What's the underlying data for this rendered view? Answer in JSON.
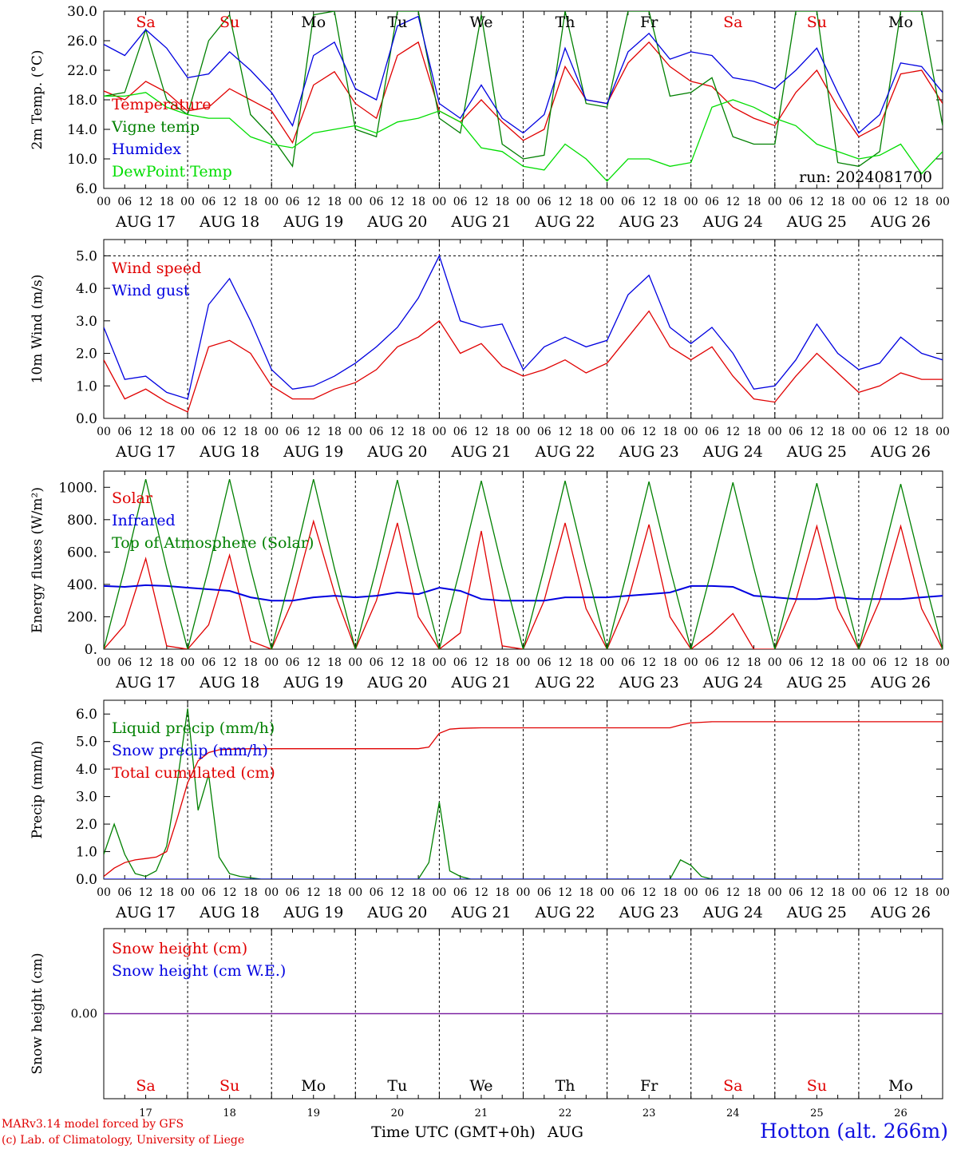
{
  "chart_data": [
    {
      "type": "line",
      "panel": "temperature",
      "ylabel": "2m Temp. (°C)",
      "ylim": [
        6,
        30
      ],
      "yticks": [
        "6.0",
        "10.0",
        "14.0",
        "18.0",
        "22.0",
        "26.0",
        "30.0"
      ],
      "annotation": "run: 2024081700",
      "x_hours": [
        0,
        6,
        12,
        18,
        24,
        30,
        36,
        42,
        48,
        54,
        60,
        66,
        72,
        78,
        84,
        90,
        96,
        102,
        108,
        114,
        120,
        126,
        132,
        138,
        144,
        150,
        156,
        162,
        168,
        174,
        180,
        186,
        192,
        198,
        204,
        210,
        216,
        222,
        228,
        234,
        240
      ],
      "series": [
        {
          "name": "Temperature",
          "color": "#e00000",
          "values": [
            19.2,
            18.0,
            20.5,
            19.0,
            16.5,
            17.0,
            19.5,
            18.0,
            16.5,
            12.2,
            20.0,
            21.8,
            17.5,
            15.5,
            24.0,
            25.8,
            16.5,
            15.0,
            18.0,
            15.0,
            12.5,
            14.0,
            22.5,
            18.0,
            17.5,
            23.0,
            25.8,
            22.5,
            20.5,
            19.8,
            17.0,
            15.5,
            14.5,
            19.0,
            22.0,
            17.0,
            13.0,
            14.5,
            21.5,
            22.0,
            17.5
          ]
        },
        {
          "name": "Vigne temp",
          "color": "#008000",
          "values": [
            18.5,
            19.0,
            27.5,
            18.0,
            16.0,
            26.0,
            29.5,
            16.0,
            13.0,
            9.0,
            29.5,
            30.0,
            14.0,
            13.0,
            30.0,
            30.0,
            15.5,
            13.5,
            29.5,
            12.0,
            10.0,
            10.5,
            30.0,
            17.5,
            17.0,
            30.0,
            30.0,
            18.5,
            19.0,
            21.0,
            13.0,
            12.0,
            12.0,
            30.0,
            30.0,
            9.5,
            9.0,
            11.0,
            30.0,
            30.0,
            14.5
          ]
        },
        {
          "name": "Humidex",
          "color": "#0000e0",
          "values": [
            25.5,
            24.0,
            27.5,
            25.0,
            21.0,
            21.5,
            24.5,
            22.0,
            19.0,
            14.5,
            24.0,
            25.8,
            19.5,
            18.0,
            28.0,
            29.3,
            17.5,
            15.5,
            20.0,
            15.5,
            13.5,
            16.0,
            25.0,
            18.0,
            17.5,
            24.5,
            27.0,
            23.5,
            24.5,
            24.0,
            21.0,
            20.5,
            19.5,
            22.0,
            25.0,
            19.0,
            13.5,
            16.0,
            23.0,
            22.5,
            19.0
          ]
        },
        {
          "name": "DewPoint Temp",
          "color": "#00dd00",
          "values": [
            18.5,
            18.5,
            19.0,
            17.0,
            16.0,
            15.5,
            15.5,
            13.0,
            12.0,
            11.5,
            13.5,
            14.0,
            14.5,
            13.5,
            15.0,
            15.5,
            16.5,
            15.0,
            11.5,
            11.0,
            9.0,
            8.5,
            12.0,
            10.0,
            7.0,
            10.0,
            10.0,
            9.0,
            9.5,
            17.0,
            18.0,
            17.0,
            15.5,
            14.5,
            12.0,
            11.0,
            10.0,
            10.5,
            12.0,
            8.0,
            11.0
          ]
        }
      ]
    },
    {
      "type": "line",
      "panel": "wind",
      "ylabel": "10m Wind (m/s)",
      "ylim": [
        0,
        5.5
      ],
      "yticks": [
        "0.0",
        "1.0",
        "2.0",
        "3.0",
        "4.0",
        "5.0"
      ],
      "x_hours": [
        0,
        6,
        12,
        18,
        24,
        30,
        36,
        42,
        48,
        54,
        60,
        66,
        72,
        78,
        84,
        90,
        96,
        102,
        108,
        114,
        120,
        126,
        132,
        138,
        144,
        150,
        156,
        162,
        168,
        174,
        180,
        186,
        192,
        198,
        204,
        210,
        216,
        222,
        228,
        234,
        240
      ],
      "series": [
        {
          "name": "Wind speed",
          "color": "#e00000",
          "values": [
            1.8,
            0.6,
            0.9,
            0.5,
            0.2,
            2.2,
            2.4,
            2.0,
            1.0,
            0.6,
            0.6,
            0.9,
            1.1,
            1.5,
            2.2,
            2.5,
            3.0,
            2.0,
            2.3,
            1.6,
            1.3,
            1.5,
            1.8,
            1.4,
            1.7,
            2.5,
            3.3,
            2.2,
            1.8,
            2.2,
            1.3,
            0.6,
            0.5,
            1.3,
            2.0,
            1.4,
            0.8,
            1.0,
            1.4,
            1.2,
            1.2
          ]
        },
        {
          "name": "Wind gust",
          "color": "#0000e0",
          "values": [
            2.8,
            1.2,
            1.3,
            0.8,
            0.6,
            3.5,
            4.3,
            3.0,
            1.5,
            0.9,
            1.0,
            1.3,
            1.7,
            2.2,
            2.8,
            3.7,
            5.0,
            3.0,
            2.8,
            2.9,
            1.5,
            2.2,
            2.5,
            2.2,
            2.4,
            3.8,
            4.4,
            2.8,
            2.3,
            2.8,
            2.0,
            0.9,
            1.0,
            1.8,
            2.9,
            2.0,
            1.5,
            1.7,
            2.5,
            2.0,
            1.8
          ]
        }
      ]
    },
    {
      "type": "line",
      "panel": "energy",
      "ylabel": "Energy fluxes (W/m²)",
      "ylim": [
        0,
        1100
      ],
      "yticks": [
        "0.",
        "200.",
        "400.",
        "600.",
        "800.",
        "1000."
      ],
      "x_hours": [
        0,
        6,
        12,
        18,
        24,
        30,
        36,
        42,
        48,
        54,
        60,
        66,
        72,
        78,
        84,
        90,
        96,
        102,
        108,
        114,
        120,
        126,
        132,
        138,
        144,
        150,
        156,
        162,
        168,
        174,
        180,
        186,
        192,
        198,
        204,
        210,
        216,
        222,
        228,
        234,
        240
      ],
      "series": [
        {
          "name": "Solar",
          "color": "#e00000",
          "values": [
            0,
            150,
            560,
            20,
            0,
            150,
            580,
            50,
            0,
            300,
            790,
            350,
            0,
            300,
            780,
            200,
            0,
            100,
            730,
            20,
            0,
            300,
            780,
            250,
            0,
            300,
            770,
            200,
            0,
            100,
            220,
            0,
            0,
            300,
            760,
            250,
            0,
            300,
            760,
            250,
            0
          ]
        },
        {
          "name": "Infrared",
          "color": "#0000e0",
          "values": [
            390,
            385,
            395,
            390,
            380,
            370,
            360,
            320,
            300,
            300,
            320,
            330,
            320,
            330,
            350,
            340,
            380,
            360,
            310,
            300,
            300,
            300,
            320,
            320,
            320,
            330,
            340,
            350,
            390,
            390,
            385,
            330,
            320,
            310,
            310,
            320,
            310,
            310,
            310,
            320,
            330
          ]
        },
        {
          "name": "Top of Atmosphere (Solar)",
          "color": "#008000",
          "values": [
            0,
            500,
            1050,
            500,
            0,
            500,
            1050,
            500,
            0,
            500,
            1050,
            500,
            0,
            500,
            1045,
            500,
            0,
            500,
            1040,
            500,
            0,
            500,
            1040,
            500,
            0,
            500,
            1035,
            500,
            0,
            500,
            1030,
            500,
            0,
            500,
            1025,
            500,
            0,
            500,
            1020,
            500,
            0
          ]
        }
      ]
    },
    {
      "type": "line",
      "panel": "precip",
      "ylabel": "Precip (mm/h)",
      "ylim": [
        0,
        6.5
      ],
      "yticks": [
        "0.0",
        "1.0",
        "2.0",
        "3.0",
        "4.0",
        "5.0",
        "6.0"
      ],
      "x_hours": [
        0,
        3,
        6,
        9,
        12,
        15,
        18,
        21,
        24,
        27,
        30,
        33,
        36,
        39,
        42,
        45,
        48,
        60,
        72,
        84,
        90,
        93,
        96,
        99,
        102,
        105,
        108,
        120,
        144,
        162,
        165,
        168,
        171,
        174,
        180,
        192,
        216,
        240
      ],
      "series": [
        {
          "name": "Liquid precip (mm/h)",
          "color": "#008000",
          "values": [
            0.9,
            2.0,
            0.9,
            0.2,
            0.1,
            0.3,
            1.2,
            3.5,
            6.2,
            2.5,
            3.8,
            0.8,
            0.2,
            0.1,
            0.05,
            0,
            0,
            0,
            0,
            0,
            0,
            0.6,
            2.8,
            0.3,
            0.1,
            0,
            0,
            0,
            0,
            0,
            0.7,
            0.5,
            0.1,
            0,
            0,
            0,
            0,
            0
          ]
        },
        {
          "name": "Snow precip (mm/h)",
          "color": "#0000e0",
          "values": [
            0,
            0,
            0,
            0,
            0,
            0,
            0,
            0,
            0,
            0,
            0,
            0,
            0,
            0,
            0,
            0,
            0,
            0,
            0,
            0,
            0,
            0,
            0,
            0,
            0,
            0,
            0,
            0,
            0,
            0,
            0,
            0,
            0,
            0,
            0,
            0,
            0,
            0
          ]
        },
        {
          "name": "Total cumulated (cm)",
          "color": "#e00000",
          "values": [
            0.1,
            0.4,
            0.6,
            0.7,
            0.75,
            0.8,
            1.0,
            2.2,
            3.5,
            4.3,
            4.6,
            4.7,
            4.72,
            4.73,
            4.74,
            4.74,
            4.74,
            4.74,
            4.74,
            4.74,
            4.74,
            4.8,
            5.3,
            5.45,
            5.48,
            5.49,
            5.5,
            5.5,
            5.5,
            5.5,
            5.6,
            5.68,
            5.7,
            5.72,
            5.72,
            5.72,
            5.72,
            5.72
          ]
        }
      ]
    },
    {
      "type": "line",
      "panel": "snow",
      "ylabel": "Snow height (cm)",
      "ylim": [
        -1,
        1
      ],
      "yticks": [
        "0.00"
      ],
      "series": [
        {
          "name": "Snow height (cm)",
          "color": "#e00000",
          "values": [
            0,
            0
          ]
        },
        {
          "name": "Snow height (cm W.E.)",
          "color": "#0000e0",
          "values": [
            0,
            0
          ]
        }
      ]
    }
  ],
  "shared": {
    "hour_ticks": [
      "00",
      "06",
      "12",
      "18",
      "00",
      "06",
      "12",
      "18",
      "00",
      "06",
      "12",
      "18",
      "00",
      "06",
      "12",
      "18",
      "00",
      "06",
      "12",
      "18",
      "00",
      "06",
      "12",
      "18",
      "00",
      "06",
      "12",
      "18",
      "00",
      "06",
      "12",
      "18",
      "00",
      "06",
      "12",
      "18",
      "00",
      "06",
      "12",
      "18",
      "00"
    ],
    "dates": [
      "AUG 17",
      "AUG 18",
      "AUG 19",
      "AUG 20",
      "AUG 21",
      "AUG 22",
      "AUG 23",
      "AUG 24",
      "AUG 25",
      "AUG 26"
    ],
    "days": [
      {
        "label": "Sa",
        "weekend": true
      },
      {
        "label": "Su",
        "weekend": true
      },
      {
        "label": "Mo",
        "weekend": false
      },
      {
        "label": "Tu",
        "weekend": false
      },
      {
        "label": "We",
        "weekend": false
      },
      {
        "label": "Th",
        "weekend": false
      },
      {
        "label": "Fr",
        "weekend": false
      },
      {
        "label": "Sa",
        "weekend": true
      },
      {
        "label": "Su",
        "weekend": true
      },
      {
        "label": "Mo",
        "weekend": false
      }
    ],
    "day_numbers": [
      "17",
      "18",
      "19",
      "20",
      "21",
      "22",
      "23",
      "24",
      "25",
      "26"
    ],
    "xlabel": "Time UTC (GMT+0h)",
    "month": "AUG",
    "weekend_color": "#e00000",
    "weekday_color": "#000000"
  },
  "footer": {
    "model": "MARv3.14 model forced by GFS",
    "lab": "(c) Lab. of Climatology, University of Liege",
    "station": "Hotton (alt. 266m)"
  }
}
